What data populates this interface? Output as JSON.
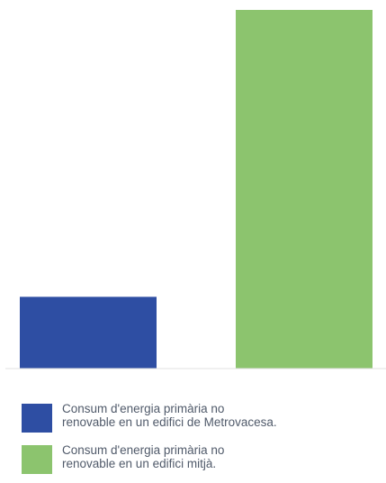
{
  "chart_data": {
    "type": "bar",
    "categories": [
      "Metrovacesa",
      "Mitjà"
    ],
    "values": [
      20,
      100
    ],
    "ylim": [
      0,
      100
    ],
    "grid": false,
    "legend_position": "bottom",
    "colors": [
      "#2e4ea3",
      "#8cc46e"
    ],
    "baseline_color": "#e0e0e0",
    "legend": [
      {
        "line1": "Consum d'energia primària no",
        "line2": "renovable en un edifici de Metrovacesa.",
        "color": "#2e4ea3"
      },
      {
        "line1": "Consum d'energia primària no",
        "line2": "renovable en un edifici mitjà.",
        "color": "#8cc46e"
      }
    ]
  }
}
